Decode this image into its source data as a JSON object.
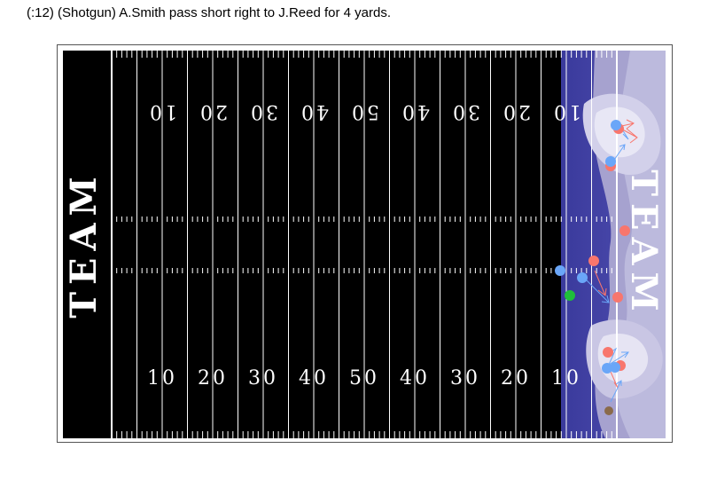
{
  "play": {
    "description": "(:12) (Shotgun) A.Smith pass short right to J.Reed for 4 yards."
  },
  "field": {
    "endzone_left_label": "TEAM",
    "endzone_right_label": "TEAM",
    "top_yard_numbers": [
      "10",
      "20",
      "30",
      "40",
      "50",
      "40",
      "30",
      "20",
      "10"
    ],
    "bottom_yard_numbers": [
      "10",
      "20",
      "30",
      "40",
      "50",
      "40",
      "30",
      "20",
      "10"
    ],
    "turf_color": "#000000",
    "line_color": "#ffffff",
    "density_colors": [
      "#3c3c9e",
      "#55519f",
      "#7570b3",
      "#9e9ac8",
      "#bcbddc",
      "#dadaeb",
      "#efedf5"
    ]
  },
  "players": {
    "offense_color": "#6aa6f8",
    "defense_color": "#f8766d",
    "ball_color": "#1fbf3a",
    "football_color": "#8a6a4a"
  }
}
